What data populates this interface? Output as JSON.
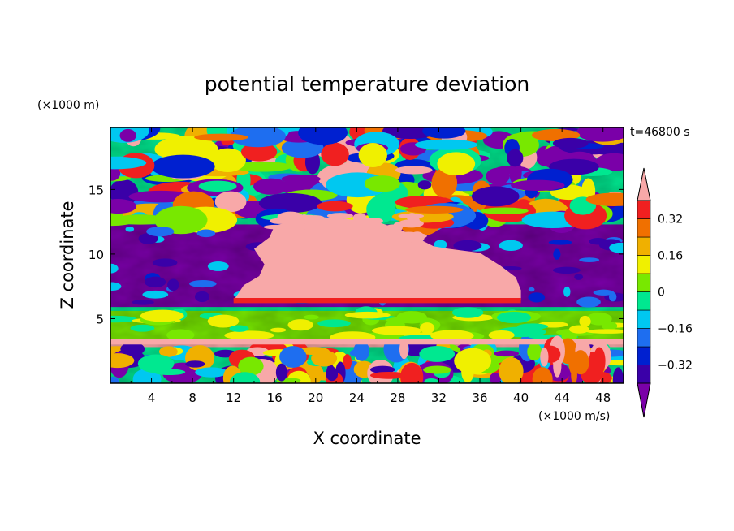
{
  "chart_data": {
    "type": "heatmap",
    "title": "potential temperature deviation",
    "xlabel": "X coordinate",
    "ylabel": "Z coordinate",
    "x_unit_label": "(×1000 m/s)",
    "y_unit_label": "(×1000 m)",
    "time_label": "t=46800 s",
    "x_ticks": [
      "4",
      "8",
      "12",
      "16",
      "20",
      "24",
      "28",
      "32",
      "36",
      "40",
      "44",
      "48"
    ],
    "y_ticks": [
      "5",
      "10",
      "15"
    ],
    "xlim": [
      0,
      50
    ],
    "ylim": [
      0,
      19.8
    ],
    "colorbar": {
      "levels": [
        -0.4,
        -0.32,
        -0.24,
        -0.16,
        -0.08,
        0,
        0.08,
        0.16,
        0.24,
        0.32,
        0.4
      ],
      "colors": [
        "#7a00a8",
        "#3a00a8",
        "#0020d0",
        "#1e6ef0",
        "#00c8f0",
        "#00e890",
        "#78e800",
        "#f0f000",
        "#f0b000",
        "#f07000",
        "#f02020",
        "#f8a8a8"
      ],
      "tick_labels": [
        "0.32",
        "0.16",
        "0",
        "−0.16",
        "−0.32"
      ],
      "tick_values": [
        0.32,
        0.16,
        0,
        -0.16,
        -0.32
      ]
    },
    "regions": [
      {
        "name": "lower turbulent layer",
        "z": [
          0,
          2.8
        ],
        "value": "mixed"
      },
      {
        "name": "pink sheet",
        "z": [
          2.8,
          3.4
        ],
        "value": 0.45
      },
      {
        "name": "green band",
        "z": [
          3.4,
          5.6
        ],
        "value": 0.04
      },
      {
        "name": "cloud anvil",
        "x": [
          12,
          40
        ],
        "z": [
          6.2,
          12.8
        ],
        "value": 0.45
      },
      {
        "name": "purple layer",
        "z": [
          5.8,
          12.2
        ],
        "value": -0.45
      },
      {
        "name": "upper turbulent layer",
        "z": [
          12.2,
          19.8
        ],
        "value": "mixed"
      }
    ]
  }
}
